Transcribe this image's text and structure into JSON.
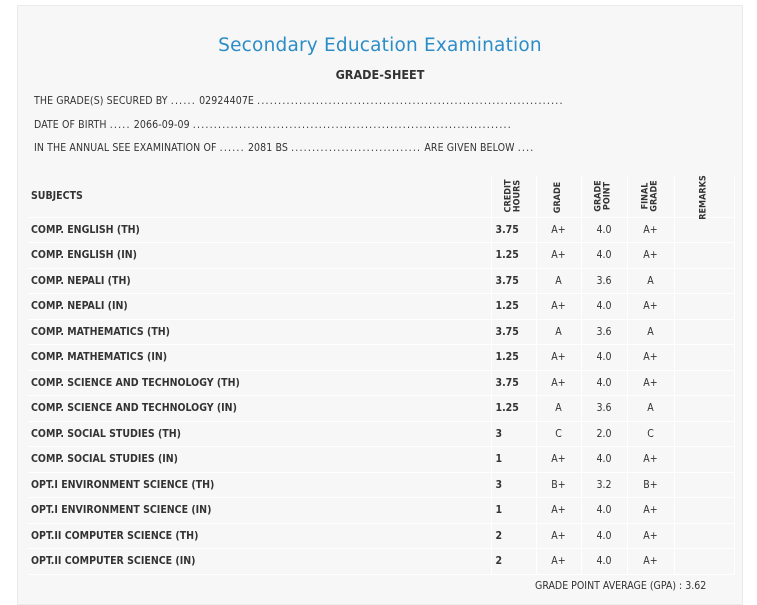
{
  "header": {
    "title": "Secondary Education Examination",
    "subtitle": "GRADE-SHEET"
  },
  "info": {
    "secured_by_prefix": "THE GRADE(S) SECURED BY",
    "symbol_number": "02924407E",
    "dob_prefix": "DATE OF BIRTH",
    "dob": "2066-09-09",
    "exam_prefix": "IN THE ANNUAL SEE EXAMINATION OF",
    "exam_year": "2081 BS",
    "exam_suffix": "ARE GIVEN BELOW"
  },
  "table": {
    "headers": {
      "subjects": "SUBJECTS",
      "credit_hours_1": "CREDIT",
      "credit_hours_2": "HOURS",
      "grade": "GRADE",
      "grade_point_1": "GRADE",
      "grade_point_2": "POINT",
      "final_grade_1": "FINAL",
      "final_grade_2": "GRADE",
      "remarks": "REMARKS"
    },
    "rows": [
      {
        "subject": "COMP. ENGLISH (TH)",
        "credit": "3.75",
        "grade": "A+",
        "point": "4.0",
        "final": "A+",
        "remarks": ""
      },
      {
        "subject": "COMP. ENGLISH (IN)",
        "credit": "1.25",
        "grade": "A+",
        "point": "4.0",
        "final": "A+",
        "remarks": ""
      },
      {
        "subject": "COMP. NEPALI (TH)",
        "credit": "3.75",
        "grade": "A",
        "point": "3.6",
        "final": "A",
        "remarks": ""
      },
      {
        "subject": "COMP. NEPALI (IN)",
        "credit": "1.25",
        "grade": "A+",
        "point": "4.0",
        "final": "A+",
        "remarks": ""
      },
      {
        "subject": "COMP. MATHEMATICS (TH)",
        "credit": "3.75",
        "grade": "A",
        "point": "3.6",
        "final": "A",
        "remarks": ""
      },
      {
        "subject": "COMP. MATHEMATICS (IN)",
        "credit": "1.25",
        "grade": "A+",
        "point": "4.0",
        "final": "A+",
        "remarks": ""
      },
      {
        "subject": "COMP. SCIENCE AND TECHNOLOGY (TH)",
        "credit": "3.75",
        "grade": "A+",
        "point": "4.0",
        "final": "A+",
        "remarks": ""
      },
      {
        "subject": "COMP. SCIENCE AND TECHNOLOGY (IN)",
        "credit": "1.25",
        "grade": "A",
        "point": "3.6",
        "final": "A",
        "remarks": ""
      },
      {
        "subject": "COMP. SOCIAL STUDIES (TH)",
        "credit": "3",
        "grade": "C",
        "point": "2.0",
        "final": "C",
        "remarks": ""
      },
      {
        "subject": "COMP. SOCIAL STUDIES (IN)",
        "credit": "1",
        "grade": "A+",
        "point": "4.0",
        "final": "A+",
        "remarks": ""
      },
      {
        "subject": "OPT.I ENVIRONMENT SCIENCE (TH)",
        "credit": "3",
        "grade": "B+",
        "point": "3.2",
        "final": "B+",
        "remarks": ""
      },
      {
        "subject": "OPT.I ENVIRONMENT SCIENCE (IN)",
        "credit": "1",
        "grade": "A+",
        "point": "4.0",
        "final": "A+",
        "remarks": ""
      },
      {
        "subject": "OPT.II COMPUTER SCIENCE (TH)",
        "credit": "2",
        "grade": "A+",
        "point": "4.0",
        "final": "A+",
        "remarks": ""
      },
      {
        "subject": "OPT.II COMPUTER SCIENCE (IN)",
        "credit": "2",
        "grade": "A+",
        "point": "4.0",
        "final": "A+",
        "remarks": ""
      }
    ]
  },
  "footer": {
    "gpa_label": "GRADE POINT AVERAGE (GPA) :",
    "gpa_value": "3.62"
  }
}
